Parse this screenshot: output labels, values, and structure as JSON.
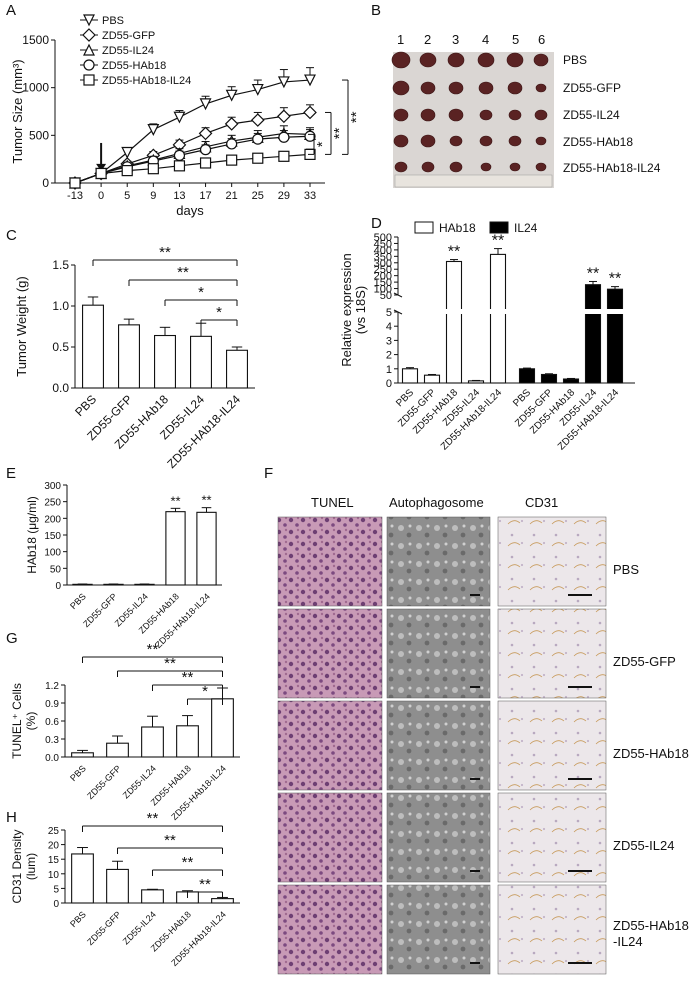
{
  "panel_letters": [
    "A",
    "B",
    "C",
    "D",
    "E",
    "F",
    "G",
    "H"
  ],
  "photo_b": {
    "column_numbers": [
      "1",
      "2",
      "3",
      "4",
      "5",
      "6"
    ],
    "row_labels": [
      "PBS",
      "ZD55-GFP",
      "ZD55-IL24",
      "ZD55-HAb18",
      "ZD55-HAb18-IL24"
    ]
  },
  "panel_f": {
    "column_headers": [
      "TUNEL",
      "Autophagosome",
      "CD31"
    ],
    "row_labels": [
      "PBS",
      "ZD55-GFP",
      "ZD55-HAb18",
      "ZD55-IL24",
      "ZD55-HAb18\n-IL24"
    ]
  },
  "colors": {
    "ink": "#111111",
    "white_bar": "#ffffff",
    "black_bar": "#000000",
    "he_pink": "#b77e9e",
    "em_gray": "#9b9b9b",
    "ihc_bg": "#ece7ea"
  },
  "chart_data": [
    {
      "panel": "A",
      "type": "line",
      "xlabel": "days",
      "ylabel": "Tumor Size (mm³)",
      "x": [
        -13,
        0,
        5,
        9,
        13,
        17,
        21,
        25,
        29,
        33
      ],
      "ylim": [
        0,
        1500
      ],
      "yticks": [
        0,
        500,
        1000,
        1500
      ],
      "legend_position": "top-left",
      "series": [
        {
          "name": "PBS",
          "marker": "triangle-down",
          "values": [
            0,
            100,
            320,
            560,
            690,
            830,
            920,
            980,
            1060,
            1080
          ],
          "errors": [
            0,
            20,
            40,
            60,
            70,
            80,
            90,
            100,
            130,
            130
          ]
        },
        {
          "name": "ZD55-GFP",
          "marker": "diamond",
          "values": [
            0,
            100,
            200,
            290,
            400,
            520,
            620,
            660,
            700,
            740
          ],
          "errors": [
            0,
            15,
            30,
            40,
            50,
            60,
            70,
            80,
            90,
            80
          ]
        },
        {
          "name": "ZD55-IL24",
          "marker": "triangle-up",
          "values": [
            0,
            100,
            180,
            240,
            310,
            380,
            440,
            480,
            520,
            510
          ],
          "errors": [
            0,
            15,
            30,
            40,
            50,
            55,
            60,
            70,
            80,
            70
          ]
        },
        {
          "name": "ZD55-HAb18",
          "marker": "circle",
          "values": [
            0,
            100,
            170,
            230,
            290,
            350,
            410,
            460,
            480,
            490
          ],
          "errors": [
            0,
            15,
            25,
            35,
            45,
            50,
            55,
            60,
            70,
            70
          ]
        },
        {
          "name": "ZD55-HAb18-IL24",
          "marker": "square",
          "values": [
            0,
            100,
            130,
            150,
            180,
            210,
            240,
            260,
            280,
            300
          ],
          "errors": [
            0,
            10,
            20,
            25,
            30,
            35,
            40,
            45,
            50,
            55
          ]
        }
      ],
      "significance": [
        {
          "label": "**",
          "between": [
            "PBS",
            "ZD55-HAb18-IL24"
          ]
        },
        {
          "label": "**",
          "between": [
            "ZD55-GFP",
            "ZD55-HAb18-IL24"
          ]
        },
        {
          "label": "*",
          "between": [
            "ZD55-IL24",
            "ZD55-HAb18-IL24"
          ]
        }
      ]
    },
    {
      "panel": "C",
      "type": "bar",
      "ylabel": "Tumor Weight (g)",
      "categories": [
        "PBS",
        "ZD55-GFP",
        "ZD55-HAb18",
        "ZD55-IL24",
        "ZD55-HAb18-IL24"
      ],
      "values": [
        1.01,
        0.77,
        0.64,
        0.63,
        0.46
      ],
      "errors": [
        0.1,
        0.07,
        0.1,
        0.16,
        0.04
      ],
      "ylim": [
        0,
        1.5
      ],
      "yticks": [
        "0.0",
        "0.5",
        "1.0",
        "1.5"
      ],
      "significance": [
        {
          "label": "**",
          "from": 0,
          "to": 4
        },
        {
          "label": "**",
          "from": 1,
          "to": 4
        },
        {
          "label": "*",
          "from": 2,
          "to": 4
        },
        {
          "label": "*",
          "from": 3,
          "to": 4
        }
      ]
    },
    {
      "panel": "D",
      "type": "bar",
      "ylabel": "Relative expression\n(vs 18S)",
      "categories": [
        "PBS",
        "ZD55-GFP",
        "ZD55-HAb18",
        "ZD55-IL24",
        "ZD55-HAb18-IL24"
      ],
      "yticks_lower": [
        "0",
        "1",
        "2",
        "3",
        "4",
        "5"
      ],
      "yticks_upper": [
        "50",
        "100",
        "150",
        "200",
        "250",
        "300",
        "350",
        "400",
        "450",
        "500"
      ],
      "axis_break": [
        5,
        50
      ],
      "legend_position": "top",
      "series": [
        {
          "name": "HAb18",
          "fill": "white",
          "values": [
            1.0,
            0.55,
            310,
            0.15,
            365
          ],
          "errors": [
            0.08,
            0.05,
            15,
            0.03,
            45
          ],
          "stars": [
            "",
            "",
            "**",
            "",
            "**"
          ]
        },
        {
          "name": "IL24",
          "fill": "black",
          "values": [
            1.0,
            0.6,
            0.28,
            130,
            95
          ],
          "errors": [
            0.05,
            0.05,
            0.04,
            25,
            20
          ],
          "stars": [
            "",
            "",
            "",
            "**",
            "**"
          ]
        }
      ]
    },
    {
      "panel": "E",
      "type": "bar",
      "ylabel": "HAb18 (μg/ml)",
      "categories": [
        "PBS",
        "ZD55-GFP",
        "ZD55-IL24",
        "ZD55-HAb18",
        "ZD55-HAb18-IL24"
      ],
      "values": [
        2,
        2,
        2,
        220,
        218
      ],
      "errors": [
        1,
        1,
        1,
        10,
        14
      ],
      "stars": [
        "",
        "",
        "",
        "**",
        "**"
      ],
      "ylim": [
        0,
        300
      ],
      "yticks": [
        "0",
        "50",
        "100",
        "150",
        "200",
        "250",
        "300"
      ]
    },
    {
      "panel": "G",
      "type": "bar",
      "ylabel": "TUNEL⁺ Cells\n(%)",
      "categories": [
        "PBS",
        "ZD55-GFP",
        "ZD55-IL24",
        "ZD55-HAb18",
        "ZD55-HAb18-IL24"
      ],
      "values": [
        0.07,
        0.23,
        0.5,
        0.52,
        0.97
      ],
      "errors": [
        0.04,
        0.12,
        0.18,
        0.17,
        0.18
      ],
      "ylim": [
        0,
        1.2
      ],
      "yticks": [
        "0.0",
        "0.3",
        "0.6",
        "0.9",
        "1.2"
      ],
      "significance": [
        {
          "label": "**",
          "from": 0,
          "to": 4
        },
        {
          "label": "**",
          "from": 1,
          "to": 4
        },
        {
          "label": "**",
          "from": 2,
          "to": 4
        },
        {
          "label": "*",
          "from": 3,
          "to": 4
        }
      ]
    },
    {
      "panel": "H",
      "type": "bar",
      "ylabel": "CD31 Density\n(lum)",
      "categories": [
        "PBS",
        "ZD55-GFP",
        "ZD55-IL24",
        "ZD55-HAb18",
        "ZD55-HAb18-IL24"
      ],
      "values": [
        16.8,
        11.5,
        4.5,
        3.8,
        1.5
      ],
      "errors": [
        2.2,
        2.8,
        0.2,
        0.4,
        0.4
      ],
      "ylim": [
        0,
        25
      ],
      "yticks": [
        "0",
        "5",
        "10",
        "15",
        "20",
        "25"
      ],
      "significance": [
        {
          "label": "**",
          "from": 0,
          "to": 4
        },
        {
          "label": "**",
          "from": 1,
          "to": 4
        },
        {
          "label": "**",
          "from": 2,
          "to": 4
        },
        {
          "label": "**",
          "from": 3,
          "to": 4
        }
      ]
    }
  ]
}
